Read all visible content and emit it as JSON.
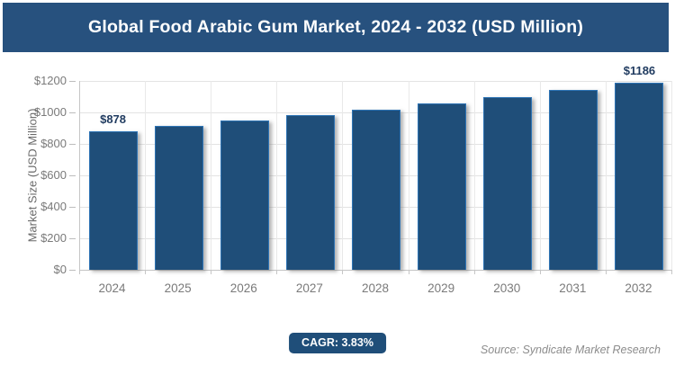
{
  "header": {
    "title": "Global Food Arabic Gum Market, 2024 - 2032 (USD Million)"
  },
  "chart_data": {
    "type": "bar",
    "title": "Global Food Arabic Gum Market, 2024 - 2032 (USD Million)",
    "categories": [
      "2024",
      "2025",
      "2026",
      "2027",
      "2028",
      "2029",
      "2030",
      "2031",
      "2032"
    ],
    "values": [
      878,
      912,
      946,
      983,
      1020,
      1060,
      1100,
      1142,
      1186
    ],
    "point_labels": [
      "$878",
      "",
      "",
      "",
      "",
      "",
      "",
      "",
      "$1186"
    ],
    "ylabel": "Market Size (USD Million)",
    "xlabel": "",
    "ylim": [
      0,
      1200
    ],
    "ytick_interval": 200,
    "ytick_labels": [
      "$0",
      "$200",
      "$400",
      "$600",
      "$800",
      "$1000",
      "$1200"
    ],
    "grid": true,
    "legend_position": "none",
    "bar_color": "#1F4E79"
  },
  "footer": {
    "cagr_label": "CAGR: 3.83%",
    "source": "Source: Syndicate Market Research"
  },
  "colors": {
    "brand_blue": "#27517E",
    "bar_fill": "#1F4E79",
    "bar_edge": "#2E74B5",
    "data_label": "#1F3A5F",
    "grid_line": "#E3E3E3",
    "axis_line": "#C6C6C6",
    "axis_text": "#7A7A7A",
    "source_text": "#8C8C8C"
  }
}
